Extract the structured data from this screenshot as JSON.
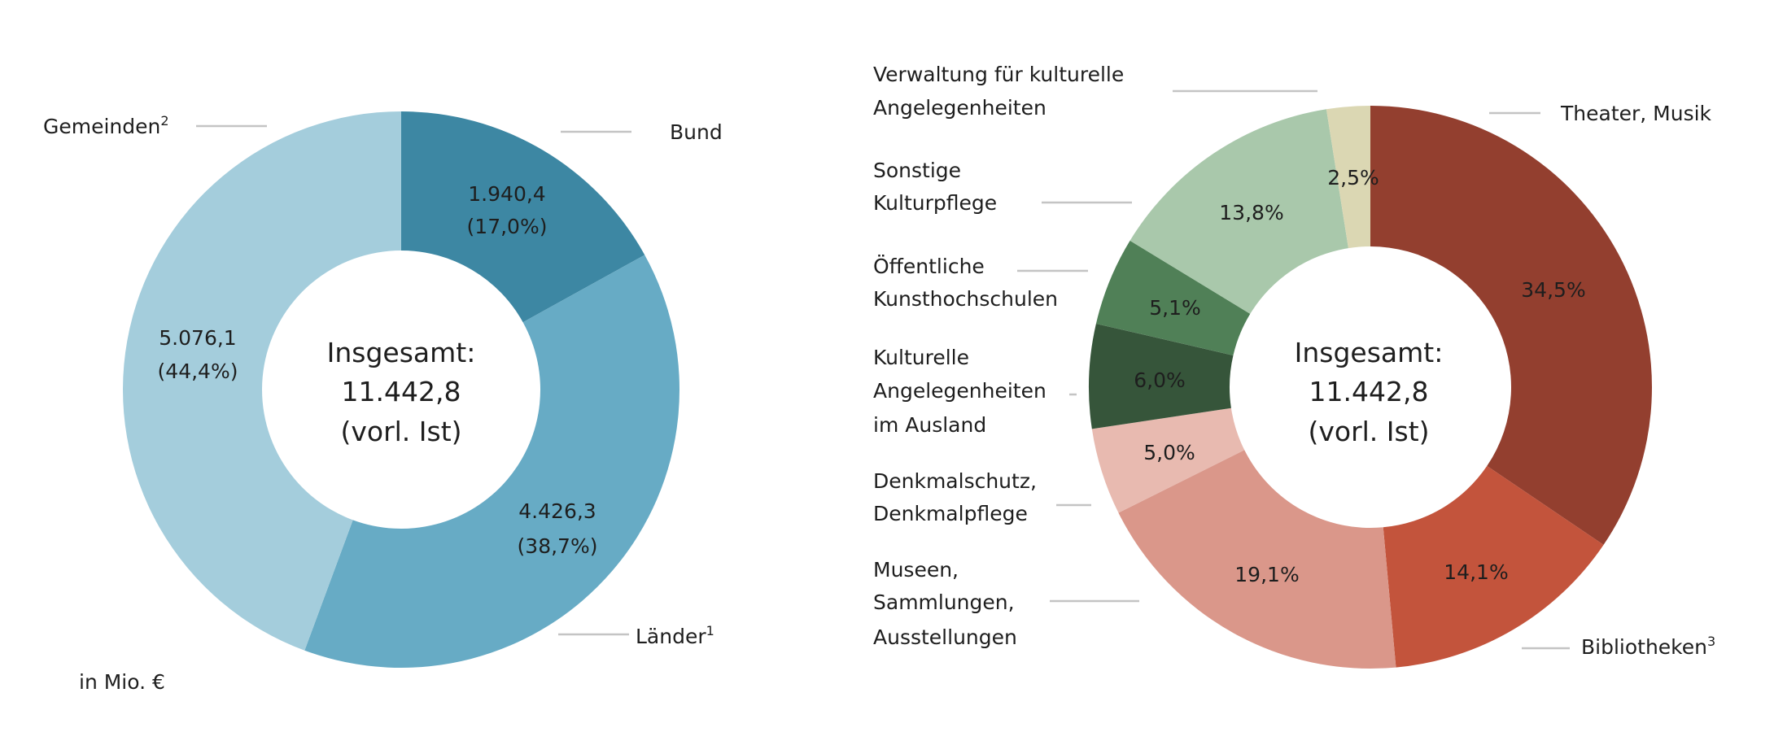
{
  "chart_data": [
    {
      "type": "pie",
      "variant": "donut",
      "unit_note": "in Mio. €",
      "center_label": [
        "Insgesamt:",
        "11.442,8",
        "(vorl. Ist)"
      ],
      "start": "top",
      "direction": "clockwise",
      "slices": [
        {
          "label": "Bund",
          "sup": "",
          "value": 1940.4,
          "value_label": "1.940,4",
          "percent": 17.0,
          "percent_label": "(17,0%)",
          "color": "#3d87a3"
        },
        {
          "label": "Länder",
          "sup": "1",
          "value": 4426.3,
          "value_label": "4.426,3",
          "percent": 38.7,
          "percent_label": "(38,7%)",
          "color": "#67abc5"
        },
        {
          "label": "Gemeinden",
          "sup": "2",
          "value": 5076.1,
          "value_label": "5.076,1",
          "percent": 44.4,
          "percent_label": "(44,4%)",
          "color": "#a4cddc"
        }
      ]
    },
    {
      "type": "pie",
      "variant": "donut",
      "center_label": [
        "Insgesamt:",
        "11.442,8",
        "(vorl. Ist)"
      ],
      "start": "top",
      "direction": "clockwise",
      "slices": [
        {
          "label": [
            "Theater, Musik"
          ],
          "sup": "",
          "percent": 34.5,
          "percent_label": "34,5%",
          "color": "#933f2f"
        },
        {
          "label": [
            "Bibliotheken"
          ],
          "sup": "3",
          "percent": 14.1,
          "percent_label": "14,1%",
          "color": "#c3543c"
        },
        {
          "label": [
            "Museen,",
            "Sammlungen,",
            "Ausstellungen"
          ],
          "sup": "",
          "percent": 19.1,
          "percent_label": "19,1%",
          "color": "#da978a"
        },
        {
          "label": [
            "Denkmalschutz,",
            "Denkmalpflege"
          ],
          "sup": "",
          "percent": 5.0,
          "percent_label": "5,0%",
          "color": "#e8bab0"
        },
        {
          "label": [
            "Kulturelle",
            "Angelegenheiten",
            "im Ausland"
          ],
          "sup": "",
          "percent": 6.0,
          "percent_label": "6,0%",
          "color": "#36553a"
        },
        {
          "label": [
            "Öffentliche",
            "Kunsthochschulen"
          ],
          "sup": "",
          "percent": 5.1,
          "percent_label": "5,1%",
          "color": "#508057"
        },
        {
          "label": [
            "Sonstige",
            "Kulturpflege"
          ],
          "sup": "",
          "percent": 13.8,
          "percent_label": "13,8%",
          "color": "#a9c8ab"
        },
        {
          "label": [
            "Verwaltung für kulturelle",
            "Angelegenheiten"
          ],
          "sup": "",
          "percent": 2.5,
          "percent_label": "2,5%",
          "color": "#dbd7b3"
        }
      ]
    }
  ]
}
